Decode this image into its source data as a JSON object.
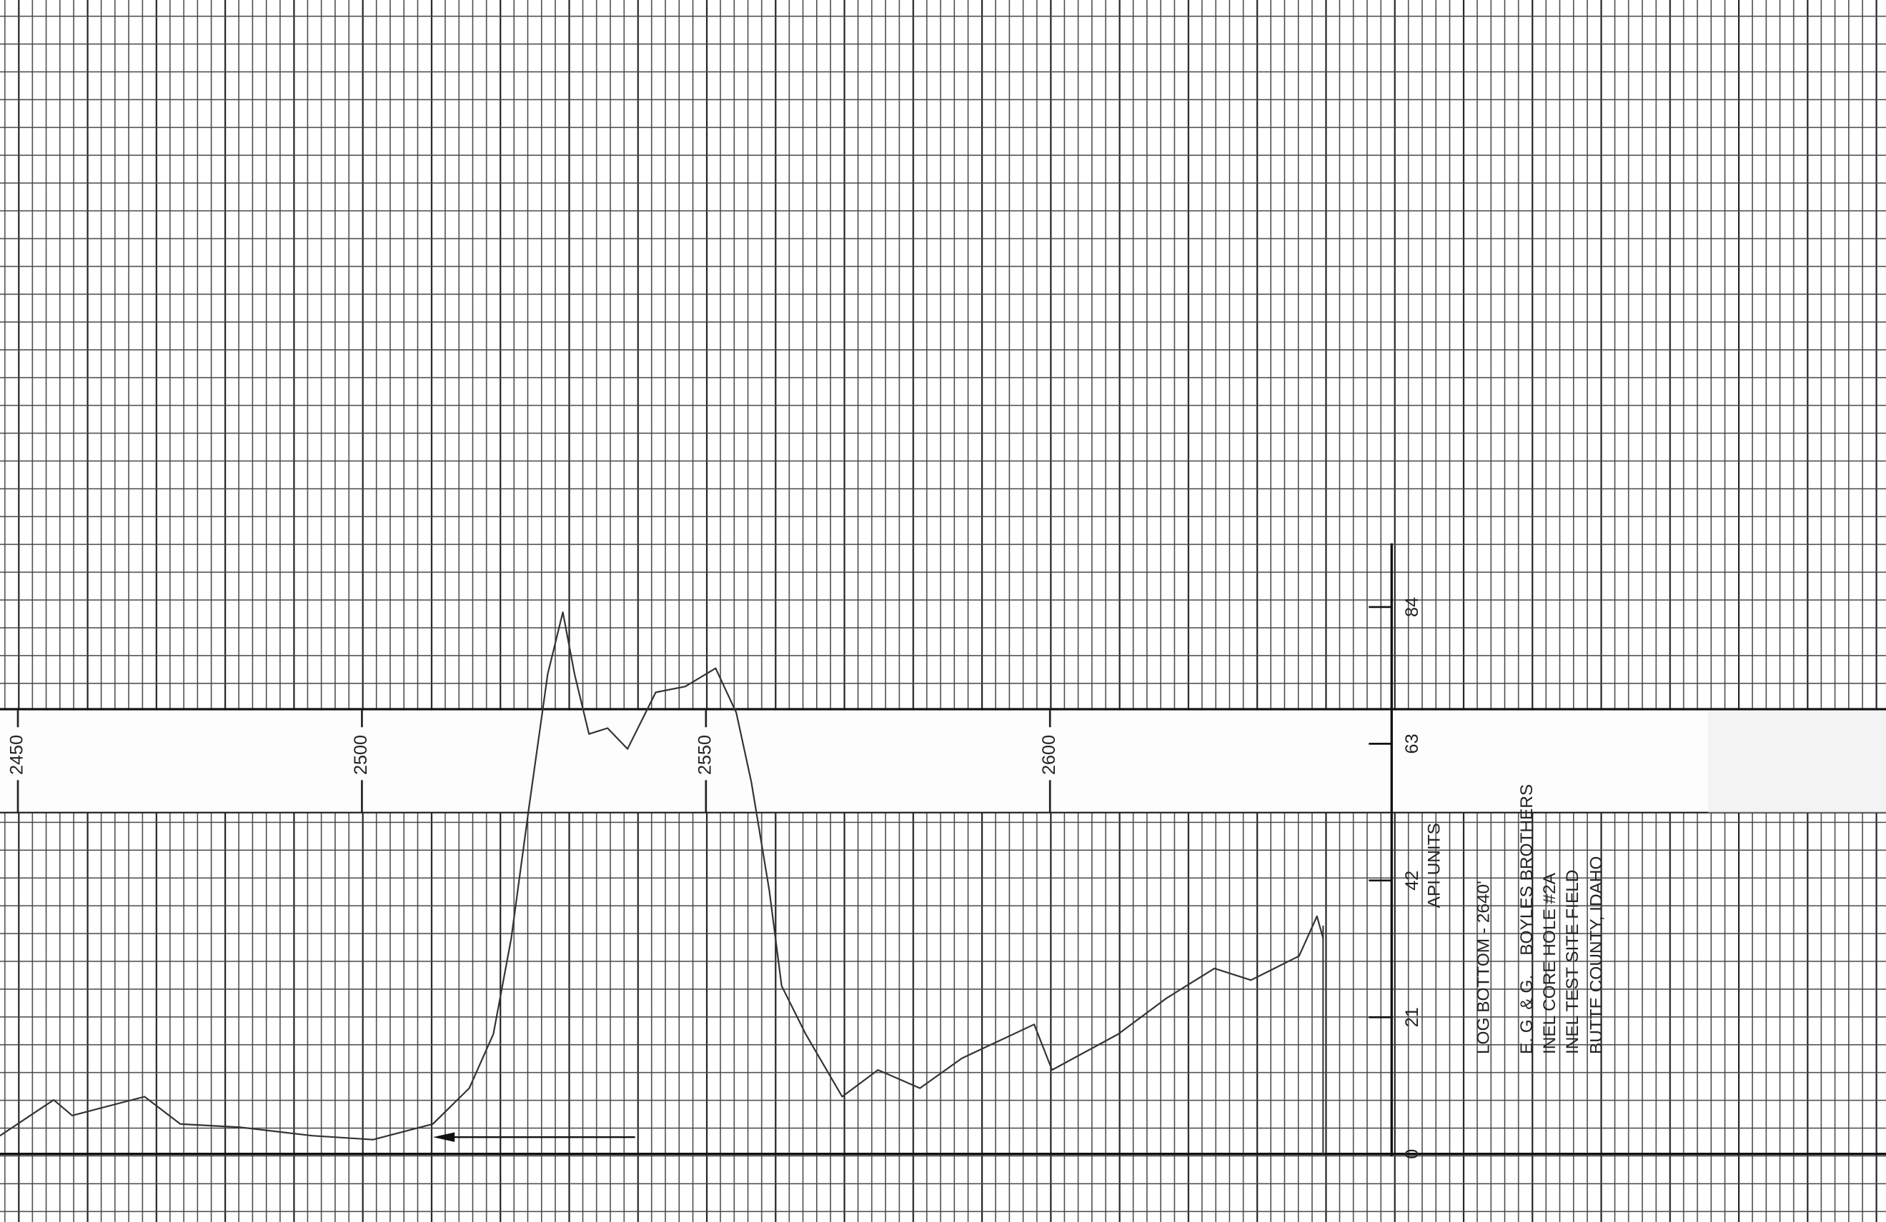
{
  "chart_data": {
    "type": "line",
    "x_label": "API UNITS",
    "annotations": [
      "LOG BOTTOM - 2640'",
      "E. G. & G.    BOYLES BROTHERS",
      "INEL CORE HOLE #2A",
      "INEL TEST SITE FIELD",
      "BUTTE COUNTY, IDAHO"
    ],
    "x": [
      2447.4,
      2455.2,
      2457.9,
      2468.4,
      2473.6,
      2482.3,
      2492.8,
      2501.6,
      2510.3,
      2515.6,
      2519.1,
      2521.7,
      2524.3,
      2527.0,
      2529.2,
      2530.9,
      2533.0,
      2535.7,
      2538.6,
      2542.7,
      2547.0,
      2551.4,
      2554.4,
      2556.6,
      2559.2,
      2561.0,
      2564.5,
      2569.8,
      2575.0,
      2581.1,
      2587.2,
      2597.7,
      2600.3,
      2609.9,
      2616.9,
      2623.9,
      2629.2,
      2636.2,
      2638.8,
      2639.7
    ],
    "values": [
      2.8,
      8.3,
      5.9,
      8.8,
      4.6,
      4.1,
      2.8,
      2.2,
      4.6,
      10.1,
      18.4,
      33.1,
      53.4,
      73.7,
      83.2,
      73.7,
      64.5,
      65.4,
      62.2,
      70.9,
      71.8,
      74.6,
      67.8,
      57.1,
      40.5,
      25.8,
      18.4,
      8.8,
      12.9,
      10.1,
      14.7,
      19.9,
      12.9,
      18.4,
      23.9,
      28.5,
      26.7,
      30.4,
      36.5,
      33.1
    ],
    "color": "#333333",
    "xlim": [
      2447.4,
      2721.5
    ],
    "xticks": [
      2450,
      2500,
      2550,
      2600
    ],
    "ylim": [
      0,
      84
    ],
    "yticks": [
      0,
      21,
      42,
      63,
      84
    ]
  }
}
